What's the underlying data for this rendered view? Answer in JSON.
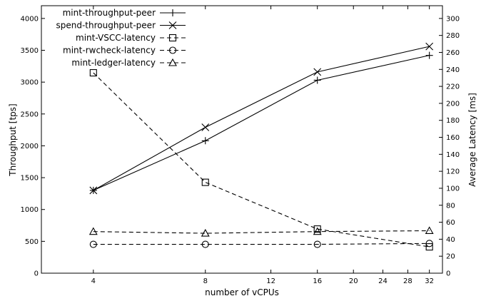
{
  "chart_data": {
    "type": "line",
    "title": "",
    "xlabel": "number of vCPUs",
    "ylabel": "Throughput [tps]",
    "y2label": "Average Latency [ms]",
    "x_scale": "log2",
    "x_ticks": [
      4,
      8,
      12,
      16,
      20,
      24,
      28,
      32
    ],
    "x_tick_labels": [
      "4",
      "8",
      "12",
      "16",
      "20",
      "24",
      "28",
      "32"
    ],
    "xlim": [
      2.9,
      34.7
    ],
    "ylim": [
      0,
      4200
    ],
    "y_ticks": [
      0,
      500,
      1000,
      1500,
      2000,
      2500,
      3000,
      3500,
      4000
    ],
    "y2lim": [
      0,
      315
    ],
    "y2_ticks": [
      0,
      20,
      40,
      60,
      80,
      100,
      120,
      140,
      160,
      180,
      200,
      220,
      240,
      260,
      280,
      300
    ],
    "legend_position": "top-left",
    "grid": false,
    "series": [
      {
        "name": "mint-throughput-peer",
        "axis": "left",
        "style": "solid",
        "marker": "plus",
        "x": [
          4,
          8,
          16,
          32
        ],
        "values": [
          1300,
          2080,
          3030,
          3420
        ]
      },
      {
        "name": "spend-throughput-peer",
        "axis": "left",
        "style": "solid",
        "marker": "cross",
        "x": [
          4,
          8,
          16,
          32
        ],
        "values": [
          1300,
          2290,
          3160,
          3560
        ]
      },
      {
        "name": "mint-VSCC-latency",
        "axis": "right",
        "style": "dashed",
        "marker": "square",
        "x": [
          4,
          8,
          16,
          32
        ],
        "values": [
          236,
          107,
          52,
          31
        ]
      },
      {
        "name": "mint-rwcheck-latency",
        "axis": "right",
        "style": "dashed",
        "marker": "circle",
        "x": [
          4,
          8,
          16,
          32
        ],
        "values": [
          34,
          34,
          34,
          35
        ]
      },
      {
        "name": "mint-ledger-latency",
        "axis": "right",
        "style": "dashed",
        "marker": "triangle",
        "x": [
          4,
          8,
          16,
          32
        ],
        "values": [
          49,
          47,
          49,
          50
        ]
      }
    ]
  }
}
